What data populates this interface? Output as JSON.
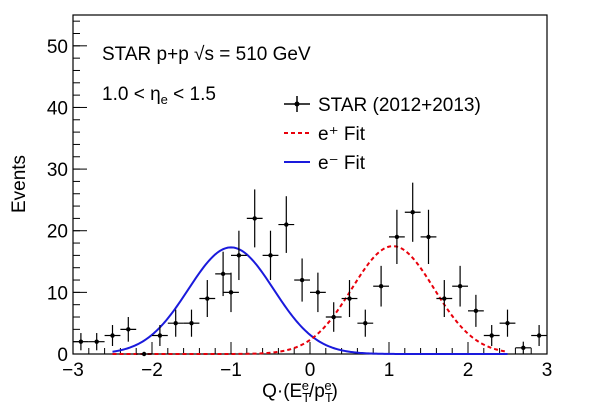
{
  "chart_data": {
    "type": "scatter",
    "xlabel": "Q·(E_T^e/p_T^e)",
    "ylabel": "Events",
    "xlim": [
      -3,
      3
    ],
    "ylim": [
      0,
      55
    ],
    "xticks": [
      -3,
      -2,
      -1,
      0,
      1,
      2,
      3
    ],
    "yticks": [
      0,
      10,
      20,
      30,
      40,
      50
    ],
    "grid": false,
    "legend_position": "top-right",
    "annotations": [
      "STAR p+p  √s = 510 GeV",
      "1.0 < ηe < 1.5"
    ],
    "series": [
      {
        "name": "STAR (2012+2013)",
        "kind": "points-with-errors",
        "color": "#000000",
        "x": [
          -2.9,
          -2.7,
          -2.5,
          -2.3,
          -2.1,
          -1.9,
          -1.7,
          -1.5,
          -1.3,
          -1.1,
          -1.0,
          -0.9,
          -0.7,
          -0.5,
          -0.3,
          -0.1,
          0.1,
          0.3,
          0.5,
          0.7,
          0.9,
          1.1,
          1.3,
          1.5,
          1.7,
          1.9,
          2.1,
          2.3,
          2.5,
          2.7,
          2.9
        ],
        "y": [
          2,
          2,
          3,
          4,
          0,
          3,
          5,
          5,
          9,
          13,
          10,
          16,
          22,
          16,
          21,
          12,
          10,
          6,
          9,
          5,
          11,
          19,
          23,
          19,
          9,
          11,
          7,
          3,
          5,
          1,
          3
        ],
        "yerr": [
          1.4,
          1.4,
          1.7,
          2.0,
          0,
          1.7,
          2.2,
          2.2,
          3.0,
          3.6,
          3.2,
          4.0,
          4.7,
          4.0,
          4.6,
          3.5,
          3.2,
          2.4,
          3.0,
          2.2,
          3.3,
          4.4,
          4.8,
          4.4,
          3.0,
          3.3,
          2.6,
          1.7,
          2.2,
          1.0,
          1.7
        ]
      },
      {
        "name": "e⁺ Fit",
        "kind": "gaussian-curve",
        "color": "#e8000b",
        "style": "dashed",
        "amplitude": 17.5,
        "mean": 1.05,
        "sigma": 0.52,
        "range": [
          -2.5,
          2.5
        ]
      },
      {
        "name": "e⁻ Fit",
        "kind": "gaussian-curve",
        "color": "#1a1adc",
        "style": "solid",
        "amplitude": 17.3,
        "mean": -1.0,
        "sigma": 0.54,
        "range": [
          -2.5,
          2.5
        ]
      }
    ]
  }
}
